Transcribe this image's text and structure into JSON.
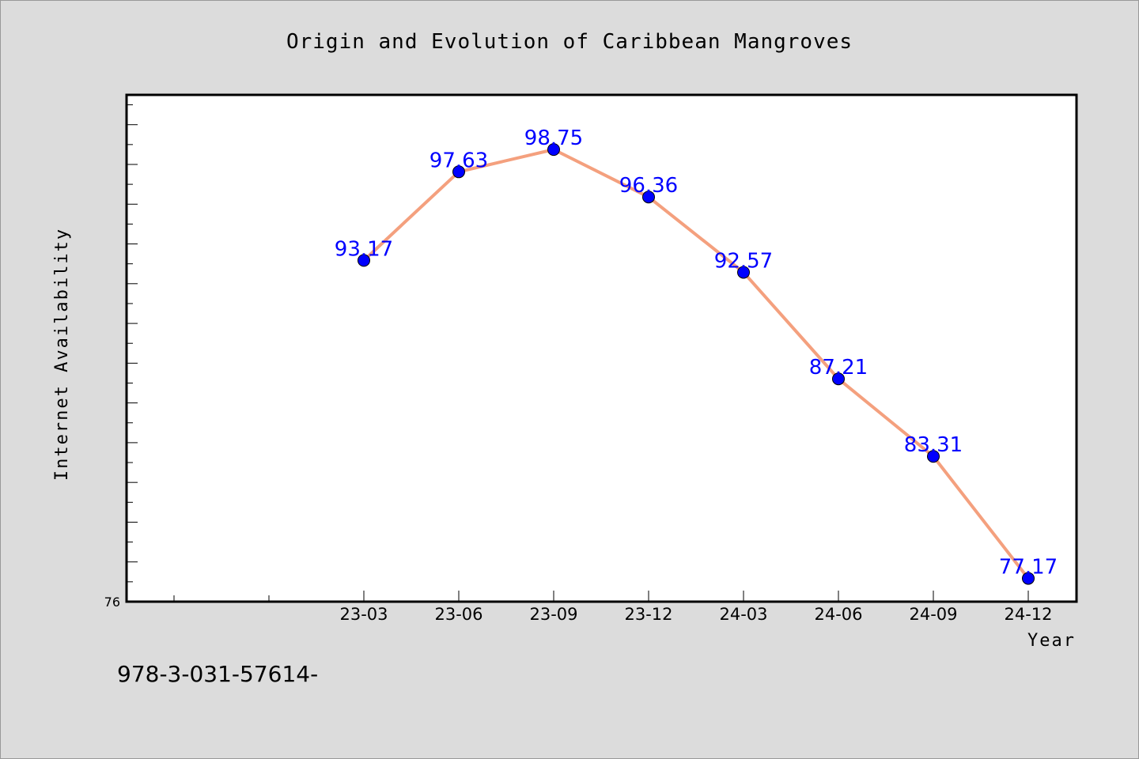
{
  "chart_data": {
    "type": "line",
    "title": "Origin and Evolution of Caribbean Mangroves",
    "xlabel": "Year",
    "ylabel": "Internet Availability",
    "categories": [
      "23-03",
      "23-06",
      "23-09",
      "23-12",
      "24-03",
      "24-06",
      "24-09",
      "24-12"
    ],
    "series": [
      {
        "values": [
          93.17,
          97.63,
          98.75,
          96.36,
          92.57,
          87.21,
          83.31,
          77.17
        ]
      }
    ],
    "data_labels": [
      "93.17",
      "97.63",
      "98.75",
      "96.36",
      "92.57",
      "87.21",
      "83.31",
      "77.17"
    ],
    "ytick_labels": [
      "76"
    ],
    "ylim": [
      76,
      101.5
    ],
    "grid": false,
    "legend": "none",
    "colors": {
      "line": "#f4a07e",
      "marker": "#0000ff",
      "data_label": "#0000ff",
      "plot_background": "#ffffff",
      "figure_background": "#dcdcdc"
    }
  },
  "footer": {
    "text": "978-3-031-57614-"
  }
}
